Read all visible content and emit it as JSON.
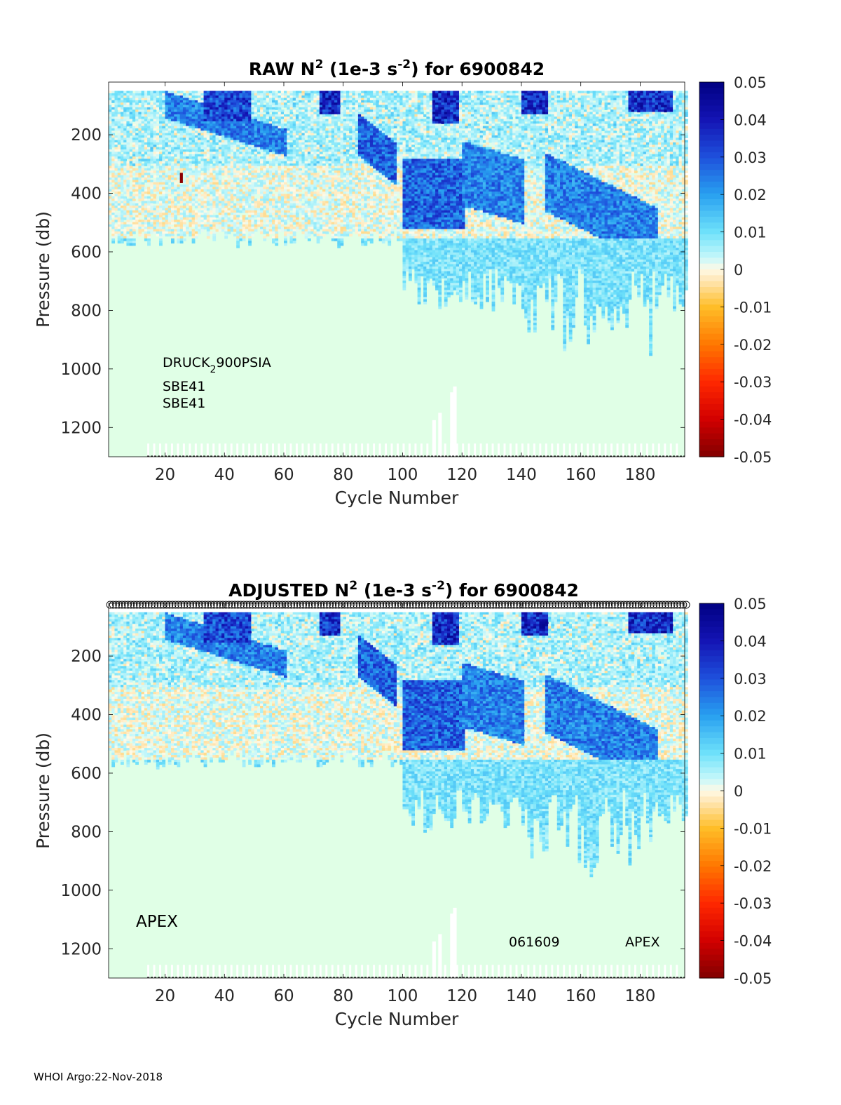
{
  "chart_data": [
    {
      "type": "heatmap",
      "title_prefix": "RAW N",
      "title_sup": "2",
      "title_mid": " (1e-3 s",
      "title_sup2": "-2",
      "title_suffix": ") for 6900842",
      "xlabel": "Cycle Number",
      "ylabel": "Pressure (db)",
      "xlim": [
        1,
        195
      ],
      "ylim": [
        1300,
        20
      ],
      "xticks": [
        "20",
        "40",
        "60",
        "80",
        "100",
        "120",
        "140",
        "160",
        "180"
      ],
      "yticks": [
        "200",
        "400",
        "600",
        "800",
        "1000",
        "1200"
      ],
      "colorbar_ticks": [
        "0.05",
        "0.04",
        "0.03",
        "0.02",
        "0.01",
        "0",
        "-0.01",
        "-0.02",
        "-0.03",
        "-0.04",
        "-0.05"
      ],
      "clim": [
        -0.05,
        0.05
      ],
      "annotations": [
        {
          "base": "DRUCK",
          "sub": "2",
          "rest": "900PSIA"
        },
        {
          "text": "SBE41"
        },
        {
          "text": "SBE41"
        }
      ],
      "colors": {
        "background": "#e0ffe6",
        "deep": "#000090",
        "mid": "#1e90ff",
        "light": "#9be8fa"
      }
    },
    {
      "type": "heatmap",
      "title_prefix": "ADJUSTED N",
      "title_sup": "2",
      "title_mid": " (1e-3 s",
      "title_sup2": "-2",
      "title_suffix": ") for 6900842",
      "xlabel": "Cycle Number",
      "ylabel": "Pressure (db)",
      "xlim": [
        1,
        195
      ],
      "ylim": [
        1300,
        20
      ],
      "xticks": [
        "20",
        "40",
        "60",
        "80",
        "100",
        "120",
        "140",
        "160",
        "180"
      ],
      "yticks": [
        "200",
        "400",
        "600",
        "800",
        "1000",
        "1200"
      ],
      "colorbar_ticks": [
        "0.05",
        "0.04",
        "0.03",
        "0.02",
        "0.01",
        "0",
        "-0.01",
        "-0.02",
        "-0.03",
        "-0.04",
        "-0.05"
      ],
      "clim": [
        -0.05,
        0.05
      ],
      "annotations": [
        {
          "text": "APEX"
        },
        {
          "text": "061609"
        },
        {
          "text": "APEX"
        }
      ],
      "colors": {
        "background": "#e0ffe6",
        "deep": "#000090",
        "mid": "#1e90ff",
        "light": "#9be8fa"
      }
    }
  ],
  "footer": "WHOI Argo:22-Nov-2018"
}
